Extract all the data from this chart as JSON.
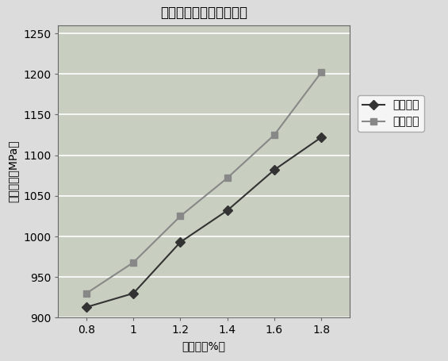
{
  "title": "镍含量对抗拉强度的影响",
  "xlabel": "镍含量（%）",
  "ylabel": "抗拉强度（MPa）",
  "x": [
    0.8,
    1.0,
    1.2,
    1.4,
    1.6,
    1.8
  ],
  "high_temp": [
    913,
    930,
    993,
    1032,
    1082,
    1122
  ],
  "room_temp": [
    930,
    968,
    1025,
    1072,
    1125,
    1202
  ],
  "ylim": [
    900,
    1260
  ],
  "yticks": [
    900,
    950,
    1000,
    1050,
    1100,
    1150,
    1200,
    1250
  ],
  "xticks": [
    0.8,
    1.0,
    1.2,
    1.4,
    1.6,
    1.8
  ],
  "legend_high": "高温强度",
  "legend_room": "常温强度",
  "plot_bg_color": "#c8cfc0",
  "figure_bg_color": "#dcdcdc",
  "grid_color": "#ffffff",
  "line_color_high": "#333333",
  "line_color_room": "#888888",
  "marker_high": "D",
  "marker_room": "s",
  "title_fontsize": 12,
  "label_fontsize": 10,
  "tick_fontsize": 10,
  "legend_fontsize": 10,
  "line_width": 1.5,
  "marker_size": 6
}
